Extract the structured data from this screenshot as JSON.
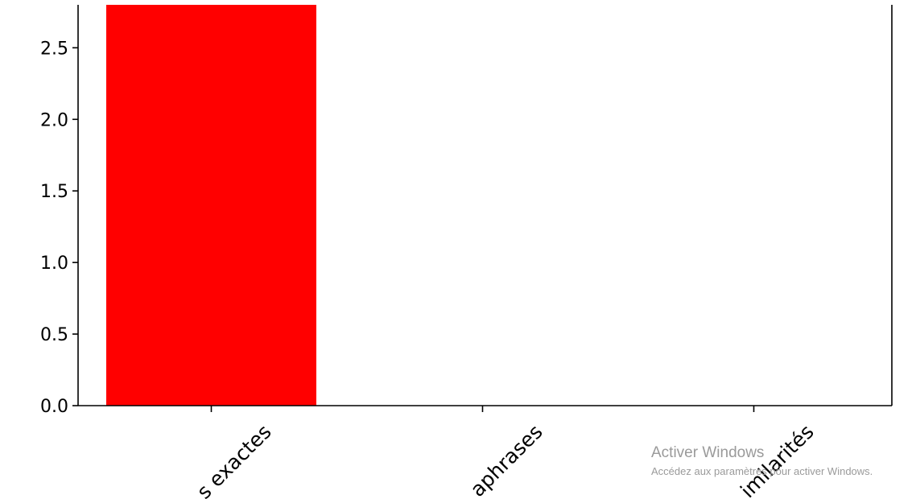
{
  "chart_data": {
    "type": "bar",
    "categories": [
      "Citations exactes",
      "Paraphrases",
      "Similarités"
    ],
    "visible_category_labels": [
      "s exactes",
      "aphrases",
      "imilarités"
    ],
    "values": [
      2.8,
      0,
      0
    ],
    "ylim": [
      0,
      2.8
    ],
    "yticks": [
      "0.0",
      "0.5",
      "1.0",
      "1.5",
      "2.0",
      "2.5"
    ],
    "bar_color": "#ff0000",
    "grid": false
  },
  "watermark": {
    "title": "Activer Windows",
    "subtitle": "Accédez aux paramètres pour activer Windows."
  }
}
